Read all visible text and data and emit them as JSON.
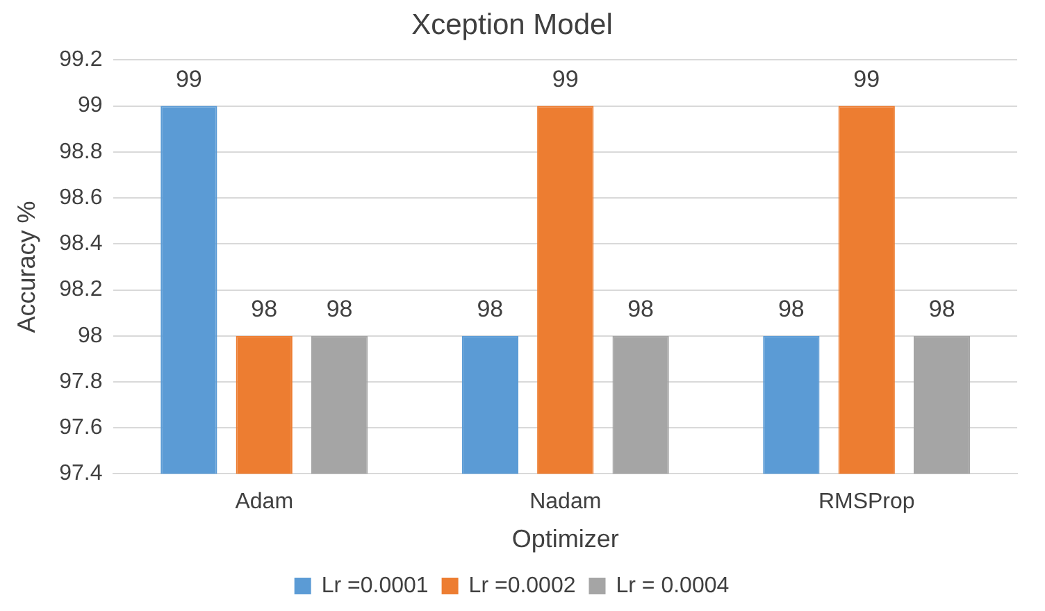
{
  "chart_data": {
    "type": "bar",
    "title": "Xception Model",
    "xlabel": "Optimizer",
    "ylabel": "Accuracy %",
    "categories": [
      "Adam",
      "Nadam",
      "RMSProp"
    ],
    "series": [
      {
        "name": "Lr =0.0001",
        "color": "#5b9bd5",
        "values": [
          99,
          98,
          98
        ]
      },
      {
        "name": "Lr =0.0002",
        "color": "#ed7d31",
        "values": [
          98,
          99,
          99
        ]
      },
      {
        "name": "Lr = 0.0004",
        "color": "#a5a5a5",
        "values": [
          98,
          98,
          98
        ]
      }
    ],
    "ylim": [
      97.4,
      99.2
    ],
    "yticks": [
      97.4,
      97.6,
      97.8,
      98,
      98.2,
      98.4,
      98.6,
      98.8,
      99,
      99.2
    ],
    "grid": "y",
    "legend": "bottom",
    "data_labels": true
  }
}
